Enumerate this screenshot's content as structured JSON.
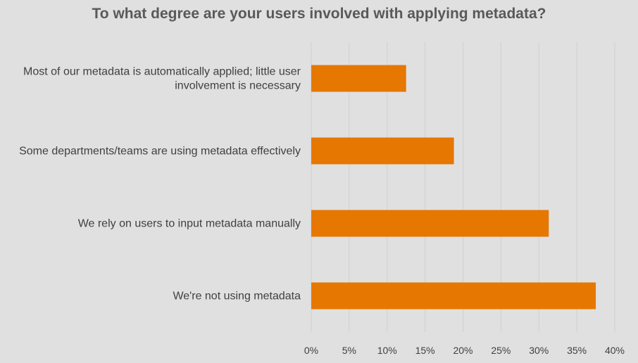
{
  "chart_data": {
    "type": "bar",
    "orientation": "horizontal",
    "title": "To what degree are your users involved with applying metadata?",
    "xlabel": "",
    "ylabel": "",
    "categories": [
      [
        "Most of our metadata is automatically applied; little user",
        "involvement is necessary"
      ],
      [
        "Some departments/teams are using metadata effectively"
      ],
      [
        "We rely on users to input metadata manually"
      ],
      [
        "We're not using metadata"
      ]
    ],
    "values": [
      12.5,
      18.8,
      31.3,
      37.5
    ],
    "xlim": [
      0,
      40
    ],
    "xticks": [
      "0%",
      "5%",
      "10%",
      "15%",
      "20%",
      "25%",
      "30%",
      "35%",
      "40%"
    ],
    "grid": "vertical",
    "legend": "none",
    "bar_color": "#e67700",
    "grid_color": "#cfcfcf",
    "text_color": "#404040"
  }
}
